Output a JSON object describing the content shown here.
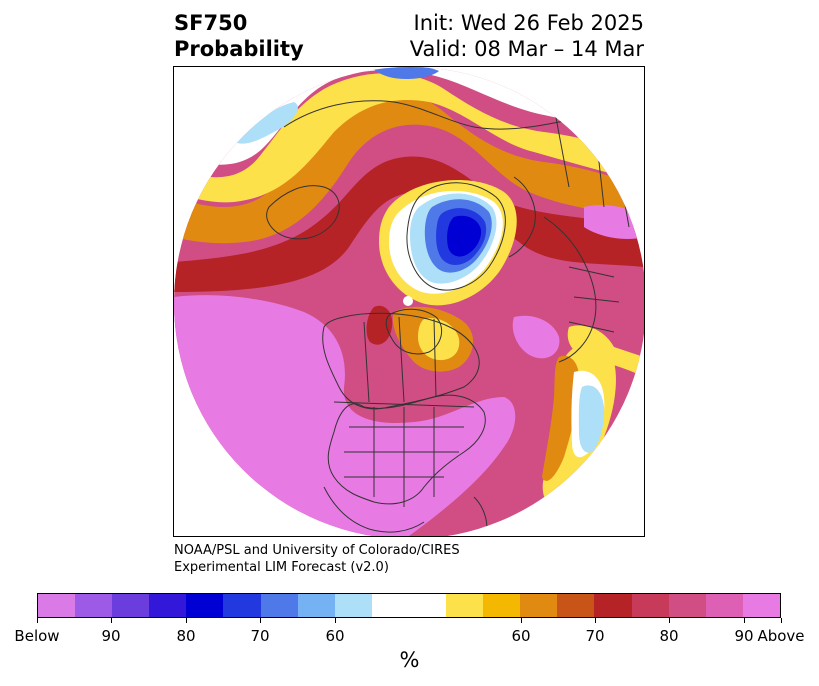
{
  "header": {
    "left_line1": "SF750",
    "left_line2": "Probability",
    "right_line1": "Init: Wed 26 Feb 2025",
    "right_line2": "Valid: 08 Mar – 14 Mar"
  },
  "credit": {
    "line1": "NOAA/PSL and University of Colorado/CIRES",
    "line2": "Experimental LIM Forecast (v2.0)"
  },
  "colorbar": {
    "unit": "%",
    "below_colors": [
      "#d97ae6",
      "#9d5ae6",
      "#6a3ddc",
      "#3318d9",
      "#0000d4",
      "#2339e0",
      "#4f78e8",
      "#75b2f4",
      "#addff9"
    ],
    "neutral_color": "#ffffff",
    "above_colors": [
      "#fce14a",
      "#f4b800",
      "#e08a12",
      "#c95418",
      "#b52327",
      "#c73a5a",
      "#d04e83",
      "#de60b4",
      "#e77ae3"
    ],
    "tick_labels": [
      "Below",
      "90",
      "80",
      "70",
      "60",
      "60",
      "70",
      "80",
      "90",
      "Above"
    ]
  },
  "map": {
    "projection": "north polar stereographic",
    "fill_colors": {
      "above_90": "#e77ae3",
      "above_80": "#d04e83",
      "above_70": "#b52327",
      "above_60": "#e08a12",
      "above_50": "#fce14a",
      "below_60": "#addff9",
      "below_70": "#4f78e8",
      "below_90": "#0000d4",
      "coastline": "#333333"
    }
  }
}
